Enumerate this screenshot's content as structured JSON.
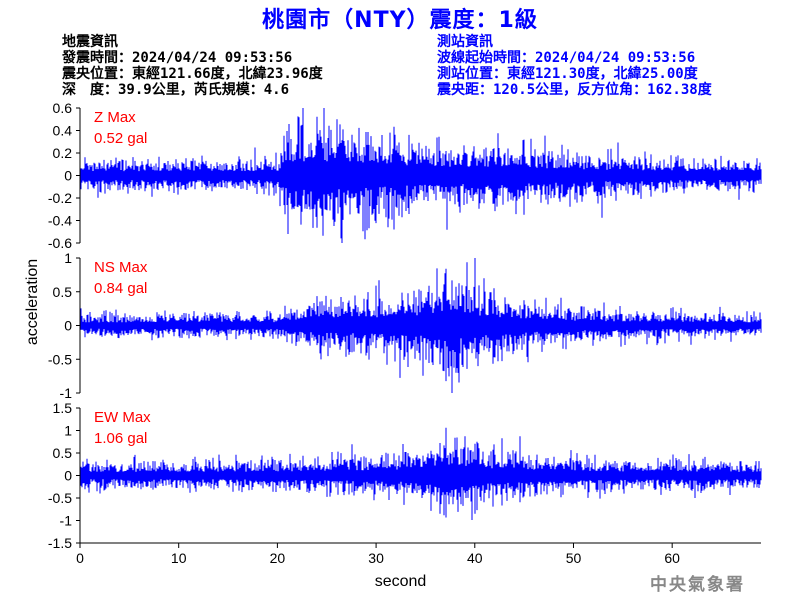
{
  "header": {
    "title": "桃園市（NTY）震度：1級",
    "left_lines": [
      "地震資訊",
      "發震時間：2024/04/24 09:53:56",
      "震央位置：東經121.66度，北緯23.96度",
      "深　度：39.9公里，芮氏規模：4.6"
    ],
    "right_lines": [
      "測站資訊",
      "波線起始時間：2024/04/24 09:53:56",
      "測站位置：東經121.30度，北緯25.00度",
      "震央距：120.5公里，反方位角：162.38度"
    ]
  },
  "colors": {
    "trace": "#0000ff",
    "label": "#ff0000",
    "title": "#0000ff"
  },
  "chart_data": {
    "type": "line",
    "xlabel": "second",
    "ylabel": "acceleration",
    "xlim": [
      0,
      69
    ],
    "xticks": [
      "0",
      "10",
      "20",
      "30",
      "40",
      "50",
      "60"
    ],
    "grid": false,
    "panels": [
      {
        "name": "Z",
        "max_label": "Z Max",
        "max_value": "0.52 gal",
        "ylim": [
          -0.6,
          0.6
        ],
        "yticks": [
          "0.6",
          "0.4",
          "0.2",
          "0",
          "-0.2",
          "-0.4",
          "-0.6"
        ],
        "peak": 0.52,
        "envelope": [
          [
            0,
            0.11
          ],
          [
            20,
            0.11
          ],
          [
            21,
            0.34
          ],
          [
            23,
            0.36
          ],
          [
            27,
            0.34
          ],
          [
            30,
            0.3
          ],
          [
            34,
            0.24
          ],
          [
            38,
            0.22
          ],
          [
            45,
            0.2
          ],
          [
            52,
            0.15
          ],
          [
            60,
            0.12
          ],
          [
            69,
            0.11
          ]
        ]
      },
      {
        "name": "NS",
        "max_label": "NS Max",
        "max_value": "0.84 gal",
        "ylim": [
          -1,
          1
        ],
        "yticks": [
          "1",
          "0.5",
          "0",
          "-0.5",
          "-1"
        ],
        "peak": 0.84,
        "envelope": [
          [
            0,
            0.13
          ],
          [
            20,
            0.14
          ],
          [
            22,
            0.25
          ],
          [
            26,
            0.3
          ],
          [
            30,
            0.33
          ],
          [
            35,
            0.42
          ],
          [
            37,
            0.62
          ],
          [
            38,
            0.6
          ],
          [
            40,
            0.42
          ],
          [
            44,
            0.3
          ],
          [
            50,
            0.2
          ],
          [
            60,
            0.15
          ],
          [
            69,
            0.13
          ]
        ]
      },
      {
        "name": "EW",
        "max_label": "EW Max",
        "max_value": "1.06 gal",
        "ylim": [
          -1.5,
          1.5
        ],
        "yticks": [
          "1.5",
          "1",
          "0.5",
          "0",
          "-0.5",
          "-1",
          "-1.5"
        ],
        "peak": 1.06,
        "envelope": [
          [
            0,
            0.22
          ],
          [
            20,
            0.25
          ],
          [
            23,
            0.3
          ],
          [
            30,
            0.33
          ],
          [
            34,
            0.42
          ],
          [
            37,
            0.7
          ],
          [
            39,
            0.6
          ],
          [
            42,
            0.45
          ],
          [
            48,
            0.32
          ],
          [
            55,
            0.26
          ],
          [
            60,
            0.26
          ],
          [
            69,
            0.22
          ]
        ]
      }
    ]
  },
  "credit": "中央氣象署"
}
